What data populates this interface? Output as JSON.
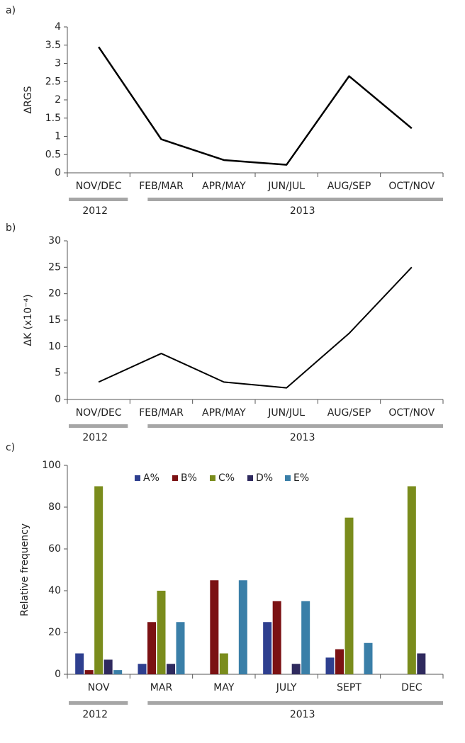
{
  "chart_data": [
    {
      "type": "line",
      "panel": "a)",
      "ylabel": "ΔRGS",
      "categories": [
        "NOV/DEC",
        "FEB/MAR",
        "APR/MAY",
        "JUN/JUL",
        "AUG/SEP",
        "OCT/NOV"
      ],
      "values": [
        3.45,
        0.92,
        0.35,
        0.22,
        2.65,
        1.22
      ],
      "color": "#000000",
      "ylim": [
        0,
        4
      ],
      "yticks": [
        0,
        0.5,
        1,
        1.5,
        2,
        2.5,
        3,
        3.5,
        4
      ],
      "years": [
        "2012",
        "2013"
      ]
    },
    {
      "type": "line",
      "panel": "b)",
      "ylabel": "ΔK (x10⁻⁴)",
      "categories": [
        "NOV/DEC",
        "FEB/MAR",
        "APR/MAY",
        "JUN/JUL",
        "AUG/SEP",
        "OCT/NOV"
      ],
      "values": [
        3.3,
        8.7,
        3.3,
        2.2,
        12.5,
        25
      ],
      "color": "#000000",
      "ylim": [
        0,
        30
      ],
      "yticks": [
        0,
        5,
        10,
        15,
        20,
        25,
        30
      ],
      "years": [
        "2012",
        "2013"
      ]
    },
    {
      "type": "bar",
      "panel": "c)",
      "ylabel": "Relative frequency",
      "categories": [
        "NOV",
        "MAR",
        "MAY",
        "JULY",
        "SEPT",
        "DEC"
      ],
      "series": [
        {
          "name": "A%",
          "color": "#2e3f8f",
          "values": [
            10,
            5,
            0,
            25,
            8,
            0
          ]
        },
        {
          "name": "B%",
          "color": "#7b1113",
          "values": [
            2,
            25,
            45,
            35,
            12,
            0
          ]
        },
        {
          "name": "C%",
          "color": "#7a8c1c",
          "values": [
            90,
            40,
            10,
            0,
            75,
            90
          ]
        },
        {
          "name": "D%",
          "color": "#2f2a5e",
          "values": [
            7,
            5,
            0,
            5,
            0,
            10
          ]
        },
        {
          "name": "E%",
          "color": "#3a7fa8",
          "values": [
            2,
            25,
            45,
            35,
            15,
            0
          ]
        }
      ],
      "ylim": [
        0,
        100
      ],
      "yticks": [
        0,
        20,
        40,
        60,
        80,
        100
      ],
      "legend": "top",
      "years": [
        "2012",
        "2013"
      ]
    }
  ]
}
